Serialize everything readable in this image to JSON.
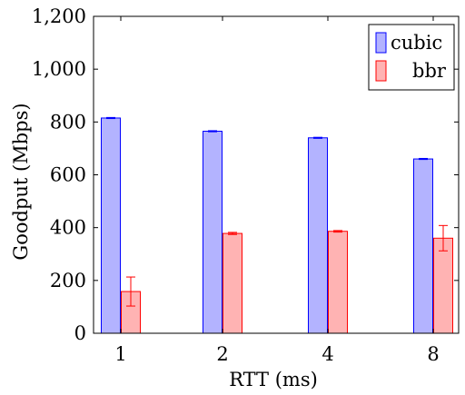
{
  "chart_data": {
    "type": "bar",
    "categories": [
      "1",
      "2",
      "4",
      "8"
    ],
    "series": [
      {
        "name": "cubic",
        "values": [
          815,
          765,
          740,
          660
        ],
        "errors": [
          2,
          2,
          2,
          2
        ],
        "fill": "#b3b3ff",
        "stroke": "#0000ff"
      },
      {
        "name": "bbr",
        "values": [
          158,
          378,
          386,
          360
        ],
        "errors": [
          55,
          4,
          3,
          48
        ],
        "fill": "#ffb3b3",
        "stroke": "#ff0000"
      }
    ],
    "xlabel": "RTT (ms)",
    "ylabel": "Goodput (Mbps)",
    "ylim": [
      0,
      1200
    ],
    "yticks": [
      "0",
      "200",
      "400",
      "600",
      "800",
      "1,000",
      "1,200"
    ],
    "ytick_values": [
      0,
      200,
      400,
      600,
      800,
      1000,
      1200
    ],
    "legend_position": "top-right",
    "grid": false
  }
}
